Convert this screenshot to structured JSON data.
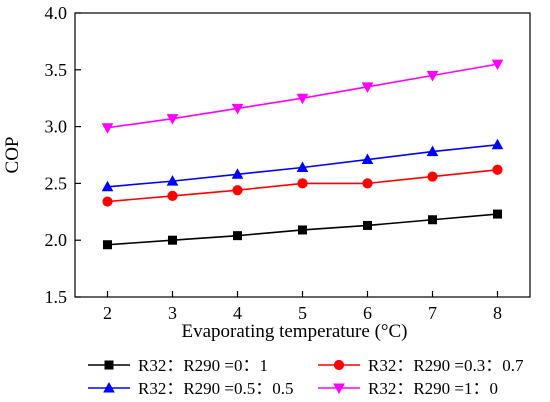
{
  "chart_data": {
    "type": "line",
    "title": "",
    "xlabel": "Evaporating temperature (°C)",
    "ylabel": "COP",
    "x": [
      2,
      3,
      4,
      5,
      6,
      7,
      8
    ],
    "xlim": [
      1.5,
      8.5
    ],
    "ylim": [
      1.5,
      4.0
    ],
    "xticks": [
      "2",
      "3",
      "4",
      "5",
      "6",
      "7",
      "8"
    ],
    "yticks": [
      "1.5",
      "2.0",
      "2.5",
      "3.0",
      "3.5",
      "4.0"
    ],
    "grid": false,
    "legend_position": "bottom",
    "series": [
      {
        "name": "R32：R290 =0：1",
        "color": "#000000",
        "marker": "square",
        "values": [
          1.96,
          2.0,
          2.04,
          2.09,
          2.13,
          2.18,
          2.23
        ]
      },
      {
        "name": "R32：R290 =0.3：0.7",
        "color": "#ff0000",
        "marker": "circle",
        "values": [
          2.34,
          2.39,
          2.44,
          2.5,
          2.5,
          2.56,
          2.62
        ]
      },
      {
        "name": "R32：R290 =0.5：0.5",
        "color": "#0000ff",
        "marker": "triangle-up",
        "values": [
          2.47,
          2.52,
          2.58,
          2.64,
          2.71,
          2.78,
          2.84
        ]
      },
      {
        "name": "R32：R290 =1：0",
        "color": "#ff00ff",
        "marker": "triangle-down",
        "values": [
          2.99,
          3.07,
          3.16,
          3.25,
          3.35,
          3.45,
          3.55
        ]
      }
    ]
  }
}
